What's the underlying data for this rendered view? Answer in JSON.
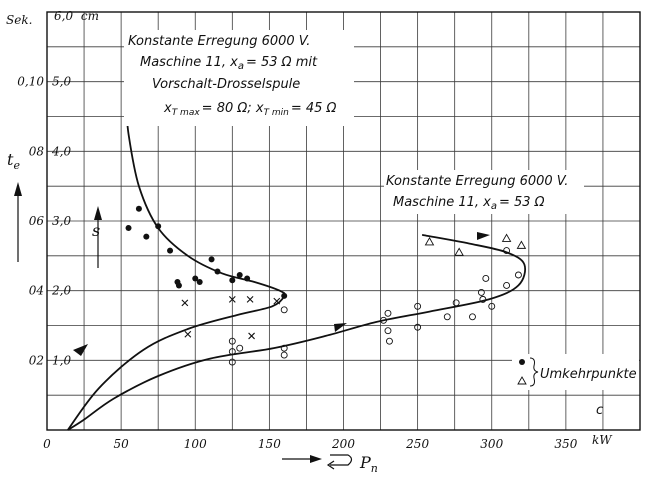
{
  "chart_data": {
    "type": "scatter",
    "title": "",
    "xlabel": "P",
    "xlabel_sub": "n",
    "xunit": "kW",
    "ylabel": "t",
    "ylabel_sub": "e",
    "yunit": "Sek.",
    "y2label": "s",
    "y2unit": "cm",
    "xlim": [
      0,
      400
    ],
    "ylim": [
      0,
      0.12
    ],
    "y2lim": [
      0,
      6.0
    ],
    "x_ticks": [
      "0",
      "50",
      "100",
      "150",
      "200",
      "250",
      "300",
      "350"
    ],
    "y_ticks": [
      "02",
      "04",
      "06",
      "08",
      "0,10"
    ],
    "y_tick_values": [
      0.02,
      0.04,
      0.06,
      0.08,
      0.1
    ],
    "y2_ticks": [
      "1,0",
      "2,0",
      "3,0",
      "4,0",
      "5,0",
      "6,0"
    ],
    "y2_tick_values": [
      1.0,
      2.0,
      3.0,
      4.0,
      5.0,
      6.0
    ],
    "grid": true,
    "annotations": {
      "upper_1": "Konstante Erregung 6000 V.",
      "upper_2": "Maschine 11, x",
      "upper_2_sub": "a",
      "upper_2_tail": "= 53 Ω mit",
      "upper_3": "Vorschalt-Drosselspule",
      "upper_4a": "x",
      "upper_4a_sub": "T max",
      "upper_4a_tail": "= 80 Ω; x",
      "upper_4b_sub": "T min",
      "upper_4b_tail": "= 45 Ω",
      "lower_1": "Konstante Erregung 6000 V.",
      "lower_2": "Maschine 11, x",
      "lower_2_sub": "a",
      "lower_2_tail": "= 53 Ω",
      "legend": "Umkehrpunkte",
      "stray": "c"
    },
    "series": [
      {
        "marker": "dot",
        "points": [
          [
            55,
            0.0905
          ],
          [
            55,
            0.058
          ],
          [
            62,
            0.0635
          ],
          [
            67,
            0.0555
          ],
          [
            75,
            0.0585
          ],
          [
            83,
            0.0515
          ],
          [
            88,
            0.0425
          ],
          [
            89,
            0.0415
          ],
          [
            100,
            0.0435
          ],
          [
            103,
            0.0425
          ],
          [
            111,
            0.049
          ],
          [
            115,
            0.0455
          ],
          [
            125,
            0.043
          ],
          [
            130,
            0.0445
          ],
          [
            135,
            0.0435
          ],
          [
            160,
            0.0385
          ]
        ]
      },
      {
        "marker": "cross",
        "points": [
          [
            93,
            0.0365
          ],
          [
            95,
            0.0275
          ],
          [
            125,
            0.0375
          ],
          [
            137,
            0.0375
          ],
          [
            138,
            0.027
          ],
          [
            155,
            0.037
          ]
        ]
      },
      {
        "marker": "circle",
        "points": [
          [
            125,
            0.0255
          ],
          [
            125,
            0.0225
          ],
          [
            125,
            0.0195
          ],
          [
            130,
            0.0235
          ],
          [
            160,
            0.0345
          ],
          [
            160,
            0.0235
          ],
          [
            160,
            0.0215
          ],
          [
            227,
            0.0315
          ],
          [
            230,
            0.0335
          ],
          [
            230,
            0.0285
          ],
          [
            231,
            0.0255
          ],
          [
            250,
            0.0355
          ],
          [
            250,
            0.0295
          ],
          [
            270,
            0.0325
          ],
          [
            276,
            0.0365
          ],
          [
            287,
            0.0325
          ],
          [
            293,
            0.0395
          ],
          [
            294,
            0.0375
          ],
          [
            296,
            0.0435
          ],
          [
            300,
            0.0355
          ],
          [
            310,
            0.0415
          ],
          [
            310,
            0.0515
          ],
          [
            318,
            0.0445
          ]
        ]
      },
      {
        "marker": "triangle",
        "points": [
          [
            258,
            0.054
          ],
          [
            278,
            0.051
          ],
          [
            310,
            0.055
          ],
          [
            320,
            0.053
          ]
        ]
      }
    ],
    "curves": [
      {
        "points": [
          [
            53,
            0.096
          ],
          [
            55,
            0.085
          ],
          [
            62,
            0.07
          ],
          [
            75,
            0.058
          ],
          [
            95,
            0.05
          ],
          [
            118,
            0.045
          ],
          [
            140,
            0.0425
          ],
          [
            157,
            0.04
          ],
          [
            160,
            0.0385
          ],
          [
            152,
            0.0355
          ],
          [
            128,
            0.033
          ],
          [
            95,
            0.029
          ],
          [
            65,
            0.023
          ],
          [
            35,
            0.012
          ],
          [
            14,
            0.0
          ]
        ]
      },
      {
        "points": [
          [
            253,
            0.056
          ],
          [
            285,
            0.0535
          ],
          [
            310,
            0.051
          ],
          [
            322,
            0.0475
          ],
          [
            318,
            0.0415
          ],
          [
            298,
            0.0375
          ],
          [
            258,
            0.034
          ],
          [
            222,
            0.031
          ],
          [
            188,
            0.027
          ],
          [
            153,
            0.0235
          ],
          [
            110,
            0.0205
          ],
          [
            75,
            0.0155
          ],
          [
            45,
            0.009
          ],
          [
            25,
            0.003
          ],
          [
            14,
            0.0
          ]
        ]
      }
    ]
  }
}
